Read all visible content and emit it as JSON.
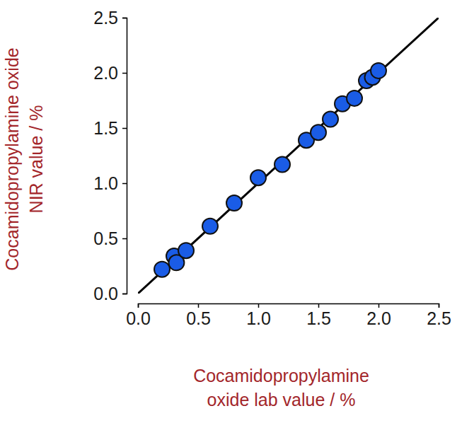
{
  "chart_data": {
    "type": "scatter",
    "x_label": [
      "Cocamidopropylamine",
      "oxide lab value / %"
    ],
    "y_label": [
      "Cocamidopropylamine oxide",
      "NIR value / %"
    ],
    "xlim": [
      0,
      2.5
    ],
    "ylim": [
      0,
      2.5
    ],
    "xticks": [
      {
        "value": 0,
        "label": "0.0"
      },
      0.5,
      {
        "value": 1,
        "label": "1.0"
      },
      1.5,
      {
        "value": 2,
        "label": "2.0"
      },
      2.5
    ],
    "yticks": [
      {
        "value": 0,
        "label": "0.0"
      },
      0.5,
      {
        "value": 1,
        "label": "1.0"
      },
      1.5,
      {
        "value": 2,
        "label": "2.0"
      },
      2.5
    ],
    "grid": false,
    "series": [
      {
        "type": "scatter",
        "color": "#1a5ce6",
        "marker": "circle",
        "x": [
          0.2,
          0.3,
          0.32,
          0.4,
          0.6,
          0.8,
          1.0,
          1.2,
          1.4,
          1.5,
          1.6,
          1.7,
          1.8,
          1.9,
          1.95,
          2.0
        ],
        "values": [
          0.22,
          0.34,
          0.28,
          0.39,
          0.61,
          0.82,
          1.05,
          1.17,
          1.39,
          1.46,
          1.58,
          1.72,
          1.77,
          1.93,
          1.96,
          2.02
        ]
      },
      {
        "type": "line",
        "color": "#000000",
        "line_style": "solid",
        "x": [
          0,
          2.5
        ],
        "values": [
          0,
          2.5
        ]
      }
    ]
  }
}
